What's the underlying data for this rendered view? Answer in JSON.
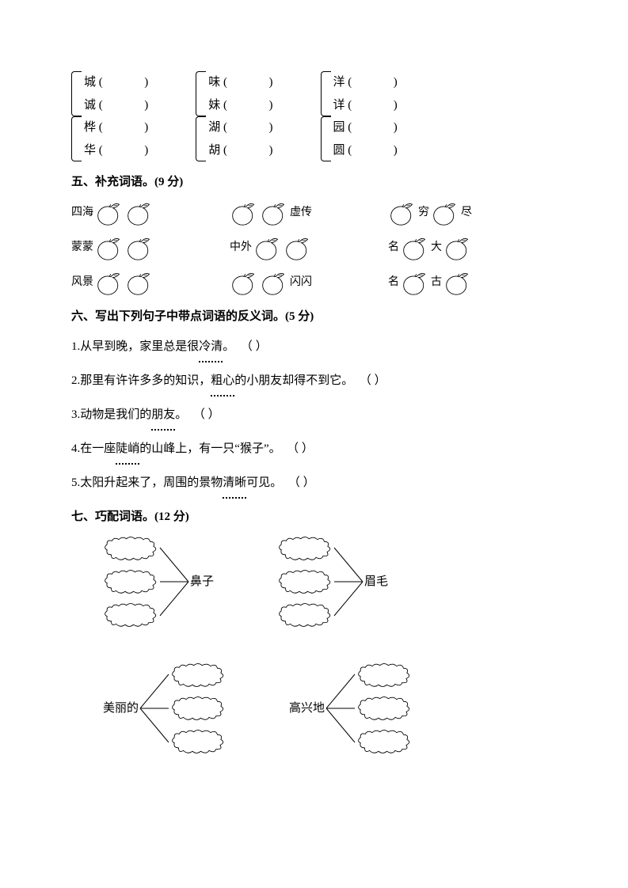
{
  "section4_char_groups": [
    [
      [
        "城",
        "诚"
      ],
      [
        "桦",
        "华"
      ]
    ],
    [
      [
        "味",
        "妹"
      ],
      [
        "湖",
        "胡"
      ]
    ],
    [
      [
        "洋",
        "详"
      ],
      [
        "园",
        "圆"
      ]
    ]
  ],
  "blank_paren": "(              )",
  "section5": {
    "heading": "五、补充词语。(9 分)",
    "rows": [
      [
        {
          "pre": "四海",
          "post": ""
        },
        {
          "pre": "",
          "post": "虚传"
        },
        {
          "pre": "",
          "mid": "穷",
          "post": "尽",
          "layout": "split"
        }
      ],
      [
        {
          "pre": "蒙蒙",
          "post": ""
        },
        {
          "pre": "中外",
          "post": ""
        },
        {
          "pre": "名",
          "mid": "",
          "post": "大",
          "layout": "split2"
        }
      ],
      [
        {
          "pre": "风景",
          "post": ""
        },
        {
          "pre": "",
          "post": "闪闪"
        },
        {
          "pre": "名",
          "mid": "",
          "post": "古",
          "layout": "split2"
        }
      ]
    ],
    "peach": {
      "stroke": "#000000",
      "fill": "#ffffff",
      "stroke_width": 1
    }
  },
  "section6": {
    "heading": "六、写出下列句子中带点词语的反义词。(5 分)",
    "items": [
      {
        "num": "1.",
        "parts": [
          "从早到晚，家里总是很",
          {
            "t": "冷清",
            "dot": true
          },
          "。"
        ],
        "paren": "（                ）"
      },
      {
        "num": "2.",
        "parts": [
          "那里有许许多多的知识，",
          {
            "t": "粗心",
            "dot": true
          },
          "的小朋友却得不到它。"
        ],
        "paren": "（                ）"
      },
      {
        "num": "3.",
        "parts": [
          "动物是我们的",
          {
            "t": "朋友",
            "dot": true
          },
          "。"
        ],
        "paren": "（                ）"
      },
      {
        "num": "4.",
        "parts": [
          "在一座",
          {
            "t": "陡峭",
            "dot": true
          },
          "的山峰上，有一只“猴子”。"
        ],
        "paren": "（              ）"
      },
      {
        "num": "5.",
        "parts": [
          "太阳升起来了，周围的景物",
          {
            "t": "清晰",
            "dot": true
          },
          "可见。"
        ],
        "paren": "（                ）"
      }
    ]
  },
  "section7": {
    "heading": "七、巧配词语。(12 分)",
    "items": [
      {
        "label": "鼻子",
        "side": "right"
      },
      {
        "label": "眉毛",
        "side": "right"
      },
      {
        "label": "美丽的",
        "side": "left"
      },
      {
        "label": "高兴地",
        "side": "left"
      }
    ],
    "cloud": {
      "stroke": "#000000",
      "fill": "#ffffff",
      "stroke_width": 1
    }
  }
}
